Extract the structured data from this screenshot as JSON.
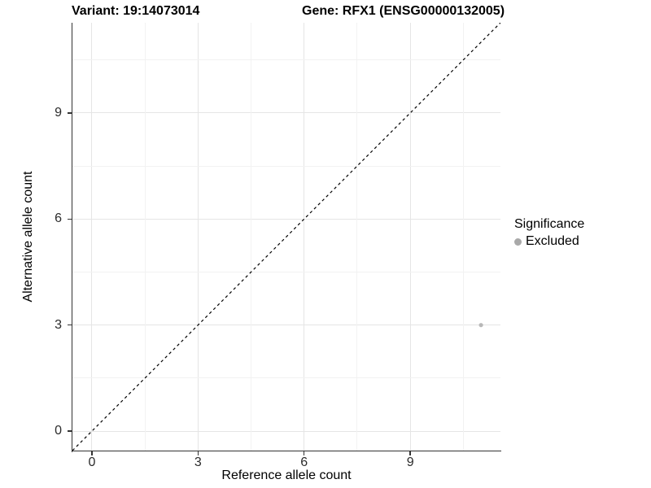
{
  "titles": {
    "variant": "Variant: 19:14073014",
    "gene": "Gene: RFX1 (ENSG00000132005)"
  },
  "axes": {
    "x_label": "Reference allele count",
    "y_label": "Alternative allele count"
  },
  "legend": {
    "title": "Significance",
    "items": [
      {
        "label": "Excluded",
        "color": "#a9a9a9"
      }
    ]
  },
  "chart_data": {
    "type": "scatter",
    "title": "Variant: 19:14073014 | Gene: RFX1 (ENSG00000132005)",
    "xlabel": "Reference allele count",
    "ylabel": "Alternative allele count",
    "xlim": [
      -0.55,
      11.55
    ],
    "ylim": [
      -0.55,
      11.55
    ],
    "x_ticks": [
      0,
      3,
      6,
      9
    ],
    "y_ticks": [
      0,
      3,
      6,
      9
    ],
    "x_minor_ticks": [
      1.5,
      4.5,
      7.5,
      10.5
    ],
    "y_minor_ticks": [
      1.5,
      4.5,
      7.5,
      10.5
    ],
    "grid": "major-and-minor",
    "legend_position": "right",
    "series": [
      {
        "name": "Excluded",
        "color": "#b8b8b8",
        "points": [
          {
            "x": 11,
            "y": 3
          }
        ]
      }
    ],
    "reference_line": {
      "type": "identity",
      "style": "dashed",
      "color": "#000000",
      "from": [
        -0.55,
        -0.55
      ],
      "to": [
        11.55,
        11.55
      ]
    },
    "colors": {
      "point_excluded": "#b8b8b8",
      "grid_major": "#e5e5e5",
      "grid_minor": "#f2f2f2",
      "axis_line": "#333333"
    }
  }
}
